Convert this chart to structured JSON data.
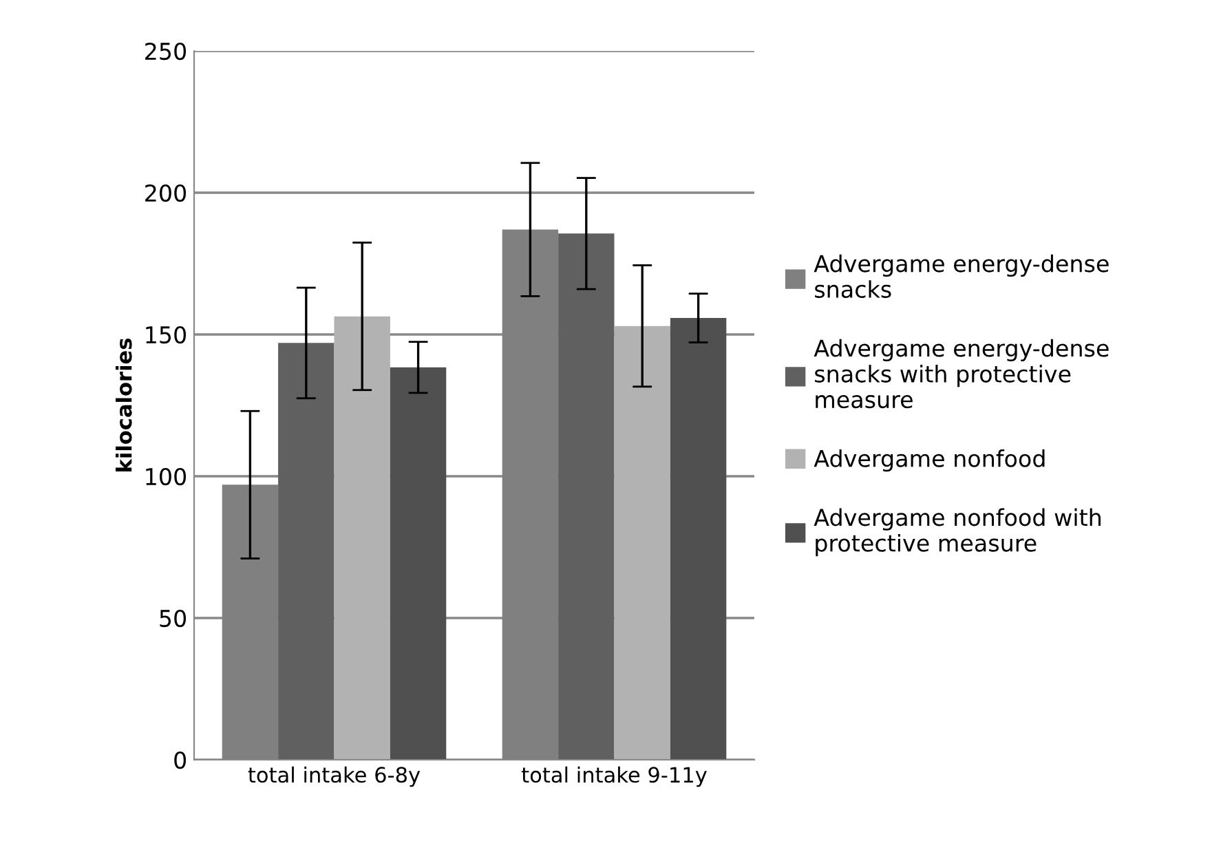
{
  "chart_data": {
    "type": "bar",
    "ylabel": "kilocalories",
    "categories": [
      "total intake 6-8y",
      "total intake 9-11y"
    ],
    "series": [
      {
        "name": "Advergame energy-dense snacks",
        "color": "#808080",
        "values": [
          97,
          187
        ],
        "errors": [
          26,
          23.5
        ]
      },
      {
        "name": "Advergame energy-dense snacks with protective measure",
        "color": "#606060",
        "values": [
          147,
          185.6
        ],
        "errors": [
          19.5,
          19.6
        ]
      },
      {
        "name": "Advergame nonfood",
        "color": "#b2b2b2",
        "values": [
          156.4,
          153
        ],
        "errors": [
          26,
          21.4
        ]
      },
      {
        "name": "Advergame nonfood with protective measure",
        "color": "#505050",
        "values": [
          138.4,
          155.8
        ],
        "errors": [
          9,
          8.6
        ]
      }
    ],
    "ylim": [
      0,
      250
    ],
    "yticks": [
      0,
      50,
      100,
      150,
      200,
      250
    ],
    "grid": "y",
    "legend": "right"
  }
}
